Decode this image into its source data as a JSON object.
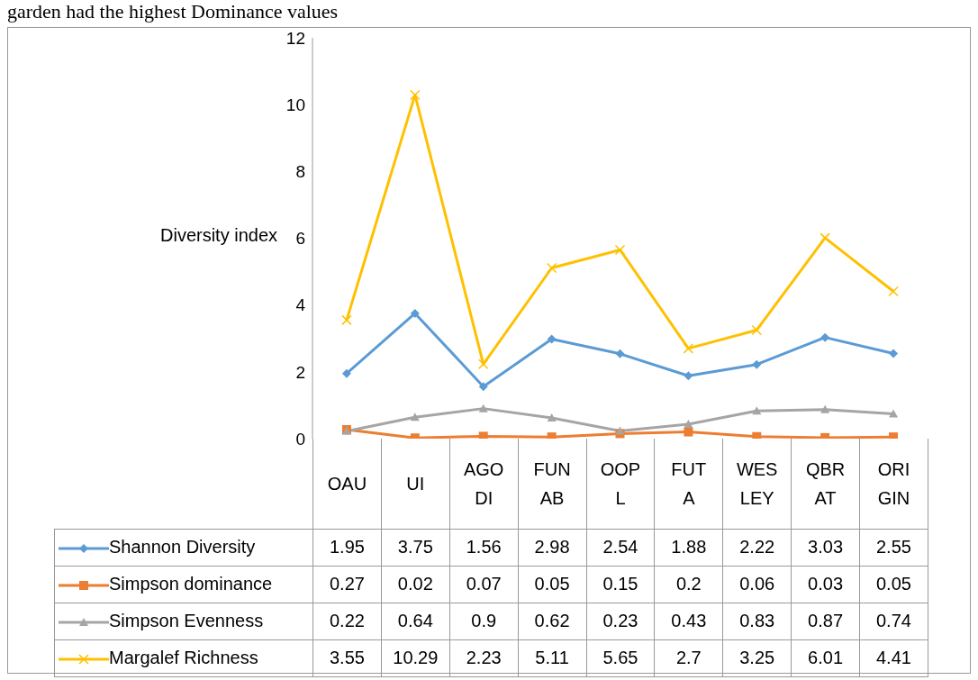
{
  "chart_data": {
    "type": "line",
    "annotations": [
      "garden had the highest Dominance values"
    ],
    "ylabel": "Diversity index",
    "categories": [
      "OAU",
      "UI",
      "AGODI",
      "FUNAB",
      "OOPL",
      "FUTA",
      "WESLEY",
      "QBRAT",
      "ORIGIN"
    ],
    "series": [
      {
        "name": "Shannon Diversity",
        "color": "#5b9bd5",
        "marker": "diamond",
        "values": [
          1.95,
          3.75,
          1.56,
          2.98,
          2.54,
          1.88,
          2.22,
          3.03,
          2.55
        ]
      },
      {
        "name": "Simpson dominance",
        "color": "#ed7d31",
        "marker": "square",
        "values": [
          0.27,
          0.02,
          0.07,
          0.05,
          0.15,
          0.2,
          0.06,
          0.03,
          0.05
        ]
      },
      {
        "name": "Simpson  Evenness",
        "color": "#a5a5a5",
        "marker": "triangle",
        "values": [
          0.22,
          0.64,
          0.9,
          0.62,
          0.23,
          0.43,
          0.83,
          0.87,
          0.74
        ]
      },
      {
        "name": "Margalef Richness",
        "color": "#ffc000",
        "marker": "cross",
        "values": [
          3.55,
          10.29,
          2.23,
          5.11,
          5.65,
          2.7,
          3.25,
          6.01,
          4.41
        ]
      }
    ],
    "ylim": [
      0,
      12
    ],
    "yticks": [
      0,
      2,
      4,
      6,
      8,
      10,
      12
    ],
    "grid": false,
    "legend": "bottom",
    "data_labels": true
  }
}
